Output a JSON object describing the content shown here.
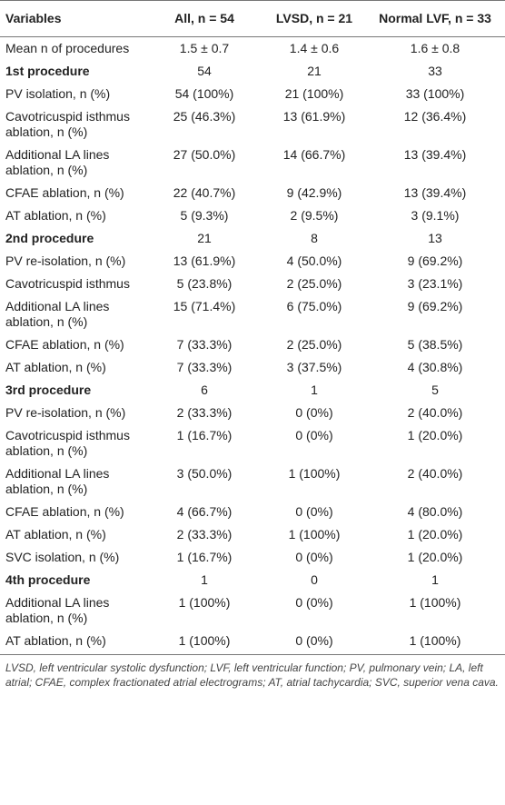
{
  "table": {
    "columns": [
      "Variables",
      "All, n = 54",
      "LVSD, n = 21",
      "Normal LVF, n = 33"
    ],
    "rows": [
      [
        "Mean n of procedures",
        "1.5 ± 0.7",
        "1.4 ± 0.6",
        "1.6 ± 0.8"
      ]
    ],
    "sections": [
      {
        "header": [
          "1st procedure",
          "54",
          "21",
          "33"
        ],
        "rows": [
          [
            "PV isolation, n (%)",
            "54 (100%)",
            "21 (100%)",
            "33 (100%)"
          ],
          [
            "Cavotricuspid isthmus ablation, n (%)",
            "25 (46.3%)",
            "13 (61.9%)",
            "12 (36.4%)"
          ],
          [
            "Additional LA lines ablation, n (%)",
            "27 (50.0%)",
            "14 (66.7%)",
            "13 (39.4%)"
          ],
          [
            "CFAE ablation, n (%)",
            "22 (40.7%)",
            "9 (42.9%)",
            "13 (39.4%)"
          ],
          [
            "AT ablation, n (%)",
            "5 (9.3%)",
            "2 (9.5%)",
            "3 (9.1%)"
          ]
        ]
      },
      {
        "header": [
          "2nd procedure",
          "21",
          "8",
          "13"
        ],
        "rows": [
          [
            "PV re-isolation, n (%)",
            "13 (61.9%)",
            "4 (50.0%)",
            "9 (69.2%)"
          ],
          [
            "Cavotricuspid isthmus",
            "5 (23.8%)",
            "2 (25.0%)",
            "3 (23.1%)"
          ],
          [
            "Additional LA lines ablation, n (%)",
            "15 (71.4%)",
            "6 (75.0%)",
            "9 (69.2%)"
          ],
          [
            "CFAE ablation, n (%)",
            "7 (33.3%)",
            "2 (25.0%)",
            "5 (38.5%)"
          ],
          [
            "AT ablation, n (%)",
            "7 (33.3%)",
            "3 (37.5%)",
            "4 (30.8%)"
          ]
        ]
      },
      {
        "header": [
          "3rd procedure",
          "6",
          "1",
          "5"
        ],
        "rows": [
          [
            "PV re-isolation, n (%)",
            "2 (33.3%)",
            "0 (0%)",
            "2 (40.0%)"
          ],
          [
            "Cavotricuspid isthmus ablation, n (%)",
            "1 (16.7%)",
            "0 (0%)",
            "1 (20.0%)"
          ],
          [
            "Additional LA lines ablation, n (%)",
            "3 (50.0%)",
            "1 (100%)",
            "2 (40.0%)"
          ],
          [
            "CFAE ablation, n (%)",
            "4 (66.7%)",
            "0 (0%)",
            "4 (80.0%)"
          ],
          [
            "AT ablation, n (%)",
            "2 (33.3%)",
            "1 (100%)",
            "1 (20.0%)"
          ],
          [
            "SVC isolation, n (%)",
            "1 (16.7%)",
            "0 (0%)",
            "1 (20.0%)"
          ]
        ]
      },
      {
        "header": [
          "4th procedure",
          "1",
          "0",
          "1"
        ],
        "rows": [
          [
            "Additional LA lines ablation, n (%)",
            "1 (100%)",
            "0 (0%)",
            "1 (100%)"
          ],
          [
            "AT ablation, n (%)",
            "1 (100%)",
            "0 (0%)",
            "1 (100%)"
          ]
        ]
      }
    ],
    "footnote": "LVSD, left ventricular systolic dysfunction; LVF, left ventricular function; PV, pulmonary vein; LA, left atrial; CFAE, complex fractionated atrial electrograms; AT, atrial tachycardia; SVC, superior vena cava."
  }
}
